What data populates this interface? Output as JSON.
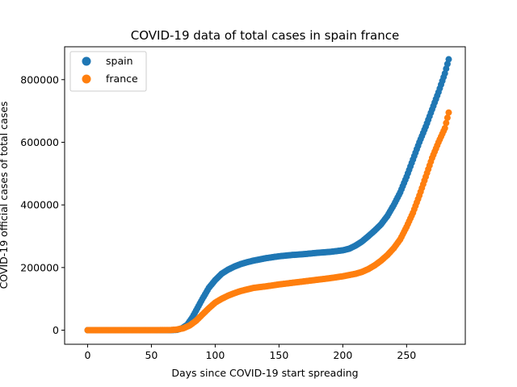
{
  "chart_data": {
    "type": "scatter",
    "title": "COVID-19 data of total cases in spain france",
    "xlabel": "Days since COVID-19 start spreading",
    "ylabel": "COVID-19 official cases of total cases",
    "xlim": [
      -18,
      296
    ],
    "ylim": [
      -45000,
      905000
    ],
    "xticks": [
      0,
      50,
      100,
      150,
      200,
      250
    ],
    "yticks": [
      0,
      200000,
      400000,
      600000,
      800000
    ],
    "grid": false,
    "legend_position": "top-left",
    "series": [
      {
        "name": "spain",
        "color": "#1f77b4",
        "anchors": [
          [
            0,
            0
          ],
          [
            50,
            0
          ],
          [
            65,
            200
          ],
          [
            70,
            1000
          ],
          [
            74,
            6000
          ],
          [
            78,
            17000
          ],
          [
            82,
            40000
          ],
          [
            86,
            70000
          ],
          [
            90,
            100000
          ],
          [
            95,
            135000
          ],
          [
            100,
            160000
          ],
          [
            105,
            180000
          ],
          [
            110,
            193000
          ],
          [
            115,
            203000
          ],
          [
            120,
            211000
          ],
          [
            125,
            217000
          ],
          [
            130,
            222000
          ],
          [
            135,
            226000
          ],
          [
            140,
            230000
          ],
          [
            150,
            236000
          ],
          [
            160,
            240000
          ],
          [
            170,
            243000
          ],
          [
            180,
            247000
          ],
          [
            190,
            250000
          ],
          [
            200,
            255000
          ],
          [
            205,
            260000
          ],
          [
            210,
            270000
          ],
          [
            215,
            283000
          ],
          [
            220,
            300000
          ],
          [
            225,
            318000
          ],
          [
            230,
            338000
          ],
          [
            235,
            365000
          ],
          [
            240,
            400000
          ],
          [
            245,
            440000
          ],
          [
            250,
            490000
          ],
          [
            255,
            545000
          ],
          [
            260,
            600000
          ],
          [
            265,
            650000
          ],
          [
            270,
            705000
          ],
          [
            275,
            760000
          ],
          [
            280,
            820000
          ],
          [
            283,
            865000
          ]
        ]
      },
      {
        "name": "france",
        "color": "#ff7f0e",
        "anchors": [
          [
            0,
            0
          ],
          [
            50,
            0
          ],
          [
            65,
            500
          ],
          [
            70,
            2000
          ],
          [
            75,
            6000
          ],
          [
            80,
            15000
          ],
          [
            85,
            30000
          ],
          [
            90,
            50000
          ],
          [
            95,
            70000
          ],
          [
            100,
            88000
          ],
          [
            105,
            100000
          ],
          [
            110,
            110000
          ],
          [
            115,
            118000
          ],
          [
            120,
            125000
          ],
          [
            125,
            130000
          ],
          [
            130,
            135000
          ],
          [
            140,
            140000
          ],
          [
            150,
            146000
          ],
          [
            160,
            151000
          ],
          [
            170,
            156000
          ],
          [
            180,
            161000
          ],
          [
            190,
            166000
          ],
          [
            200,
            172000
          ],
          [
            210,
            180000
          ],
          [
            215,
            186000
          ],
          [
            220,
            195000
          ],
          [
            225,
            207000
          ],
          [
            230,
            222000
          ],
          [
            235,
            240000
          ],
          [
            240,
            262000
          ],
          [
            245,
            290000
          ],
          [
            250,
            330000
          ],
          [
            255,
            375000
          ],
          [
            260,
            430000
          ],
          [
            265,
            490000
          ],
          [
            270,
            550000
          ],
          [
            275,
            600000
          ],
          [
            280,
            645000
          ],
          [
            283,
            695000
          ]
        ]
      }
    ]
  }
}
